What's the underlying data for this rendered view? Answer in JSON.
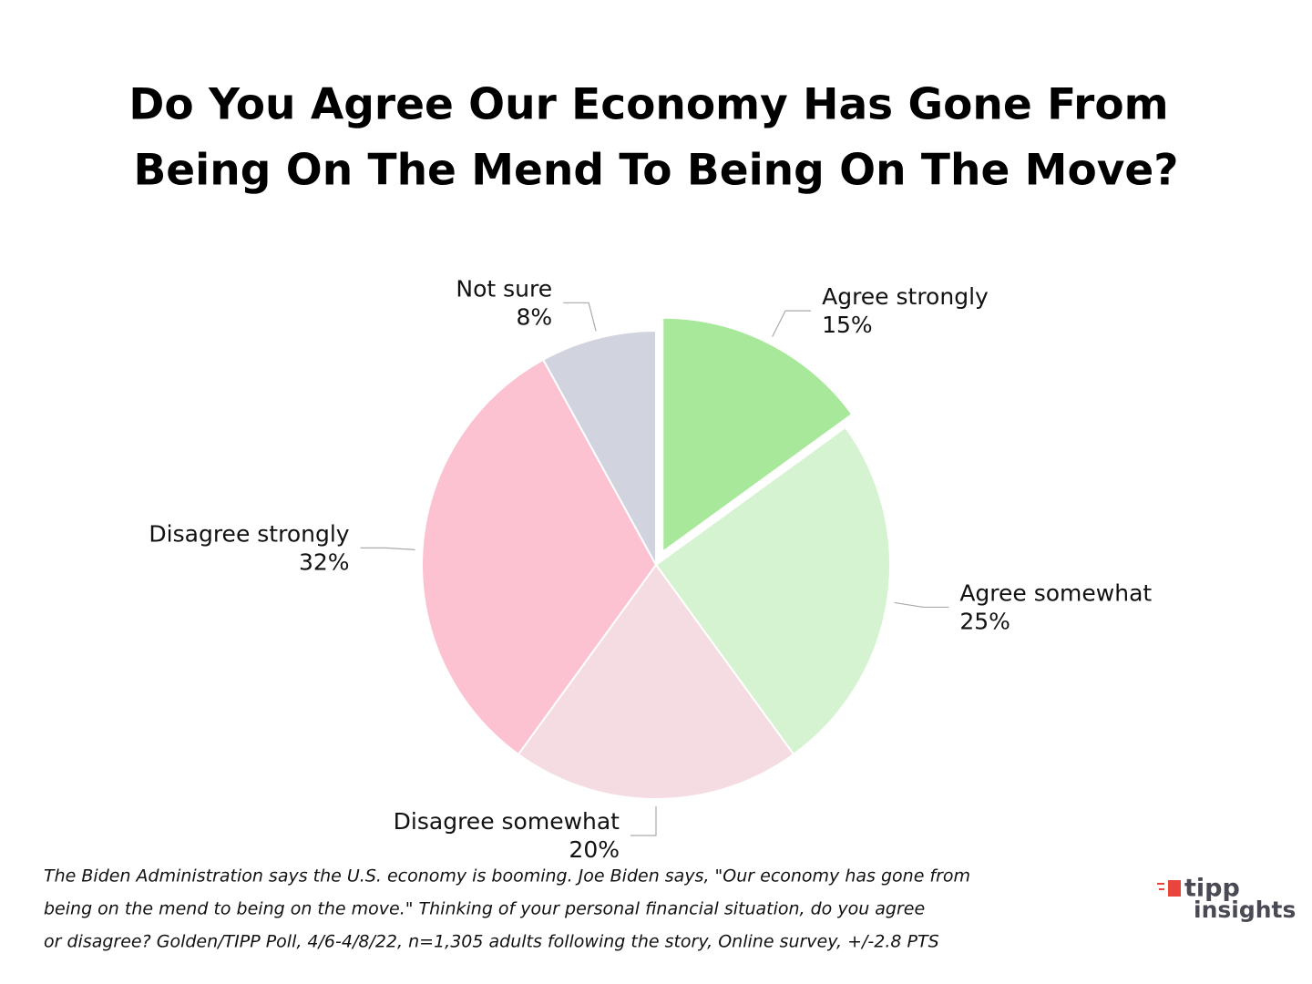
{
  "chart_data": {
    "type": "pie",
    "title": [
      "Do You Agree Our Economy Has Gone From",
      "Being On The Mend To Being On The Move?"
    ],
    "categories": [
      "Agree strongly",
      "Agree somewhat",
      "Disagree somewhat",
      "Disagree strongly",
      "Not sure"
    ],
    "values": [
      15,
      25,
      20,
      32,
      8
    ],
    "value_labels": [
      "15%",
      "25%",
      "20%",
      "32%",
      "8%"
    ],
    "colors": [
      "#a8e89a",
      "#d5f3d0",
      "#f5dbe2",
      "#fdc2d1",
      "#d1d3de"
    ],
    "explode": [
      true,
      false,
      false,
      false,
      false
    ],
    "notes": [
      "The Biden Administration says the U.S. economy is booming. Joe Biden says, \"Our economy has gone from",
      "being on the mend to being on the move.\" Thinking of your personal financial situation, do you agree",
      "or disagree? Golden/TIPP Poll, 4/6-4/8/22, n=1,305 adults following the story, Online survey, +/-2.8 PTS"
    ],
    "logo": [
      "tipp",
      "insights"
    ]
  }
}
